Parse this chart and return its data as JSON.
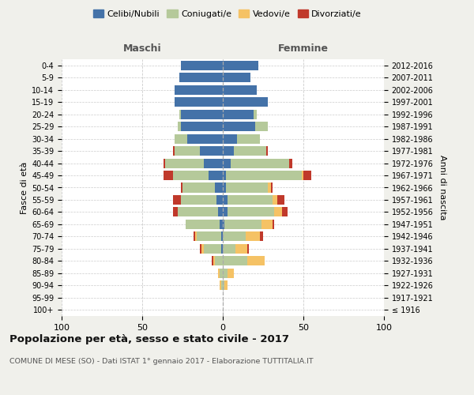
{
  "age_groups": [
    "100+",
    "95-99",
    "90-94",
    "85-89",
    "80-84",
    "75-79",
    "70-74",
    "65-69",
    "60-64",
    "55-59",
    "50-54",
    "45-49",
    "40-44",
    "35-39",
    "30-34",
    "25-29",
    "20-24",
    "15-19",
    "10-14",
    "5-9",
    "0-4"
  ],
  "birth_years": [
    "≤ 1916",
    "1917-1921",
    "1922-1926",
    "1927-1931",
    "1932-1936",
    "1937-1941",
    "1942-1946",
    "1947-1951",
    "1952-1956",
    "1957-1961",
    "1962-1966",
    "1967-1971",
    "1972-1976",
    "1977-1981",
    "1982-1986",
    "1987-1991",
    "1992-1996",
    "1997-2001",
    "2002-2006",
    "2007-2011",
    "2012-2016"
  ],
  "maschi": {
    "celibi": [
      0,
      0,
      0,
      0,
      0,
      1,
      1,
      2,
      3,
      4,
      5,
      9,
      12,
      14,
      22,
      26,
      26,
      30,
      30,
      27,
      26
    ],
    "coniugati": [
      0,
      0,
      1,
      2,
      5,
      11,
      15,
      21,
      25,
      22,
      20,
      22,
      24,
      16,
      8,
      2,
      1,
      0,
      0,
      0,
      0
    ],
    "vedovi": [
      0,
      0,
      1,
      1,
      1,
      1,
      1,
      0,
      0,
      0,
      0,
      0,
      0,
      0,
      0,
      0,
      0,
      0,
      0,
      0,
      0
    ],
    "divorziati": [
      0,
      0,
      0,
      0,
      1,
      1,
      1,
      0,
      3,
      5,
      1,
      6,
      1,
      1,
      0,
      0,
      0,
      0,
      0,
      0,
      0
    ]
  },
  "femmine": {
    "nubili": [
      0,
      0,
      0,
      0,
      0,
      0,
      0,
      1,
      3,
      3,
      2,
      2,
      5,
      7,
      9,
      20,
      19,
      28,
      21,
      17,
      22
    ],
    "coniugate": [
      0,
      0,
      1,
      3,
      15,
      8,
      14,
      23,
      29,
      28,
      26,
      47,
      36,
      20,
      14,
      8,
      2,
      0,
      0,
      0,
      0
    ],
    "vedove": [
      0,
      0,
      2,
      4,
      11,
      7,
      9,
      7,
      5,
      3,
      2,
      1,
      0,
      0,
      0,
      0,
      0,
      0,
      0,
      0,
      0
    ],
    "divorziate": [
      0,
      0,
      0,
      0,
      0,
      1,
      2,
      1,
      3,
      4,
      1,
      5,
      2,
      1,
      0,
      0,
      0,
      0,
      0,
      0,
      0
    ]
  },
  "colors": {
    "celibi": "#4472a8",
    "coniugati": "#b5c99a",
    "vedovi": "#f5c265",
    "divorziati": "#c0392b"
  },
  "xlim": 100,
  "title": "Popolazione per età, sesso e stato civile - 2017",
  "subtitle": "COMUNE DI MESE (SO) - Dati ISTAT 1° gennaio 2017 - Elaborazione TUTTITALIA.IT",
  "ylabel_left": "Fasce di età",
  "ylabel_right": "Anni di nascita",
  "xlabel_maschi": "Maschi",
  "xlabel_femmine": "Femmine",
  "bg_color": "#f0f0eb",
  "plot_bg_color": "#ffffff"
}
